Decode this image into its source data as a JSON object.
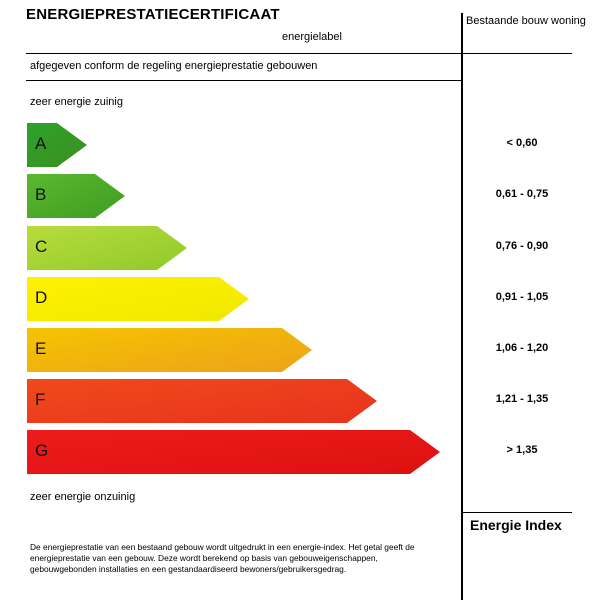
{
  "header": {
    "title": "ENERGIEPRESTATIECERTIFICAAT",
    "label_caption": "energielabel",
    "column_heading": "Bestaande bouw woning"
  },
  "conform_text": "afgegeven conform de regeling energieprestatie gebouwen",
  "scale_top": "zeer energie zuinig",
  "scale_bottom": "zeer energie onzuinig",
  "labels": [
    {
      "letter": "A",
      "range": "< 0,60",
      "color_top": "#2aa32a",
      "color_bottom": "#3f8f1f"
    },
    {
      "letter": "B",
      "range": "0,61 - 0,75",
      "color_top": "#5cb82e",
      "color_bottom": "#3e9c22"
    },
    {
      "letter": "C",
      "range": "0,76 - 0,90",
      "color_top": "#b8dc3c",
      "color_bottom": "#8fca2a"
    },
    {
      "letter": "D",
      "range": "0,91 - 1,05",
      "color_top": "#fff200",
      "color_bottom": "#f0e800"
    },
    {
      "letter": "E",
      "range": "1,06 - 1,20",
      "color_top": "#f5c400",
      "color_bottom": "#eda21a"
    },
    {
      "letter": "F",
      "range": "1,21 - 1,35",
      "color_top": "#f04a1a",
      "color_bottom": "#e8321e"
    },
    {
      "letter": "G",
      "range": "> 1,35",
      "color_top": "#ee1c1c",
      "color_bottom": "#dd1010"
    }
  ],
  "index_label": "Energie Index",
  "description": "De energieprestatie van een bestaand gebouw wordt uitgedrukt in een energie-index. Het getal geeft de energieprestatie van een gebouw. Deze wordt berekend op basis van gebouweigenschappen, gebouwgebonden installaties en een gestandaardiseerd bewoners/gebruikersgedrag."
}
